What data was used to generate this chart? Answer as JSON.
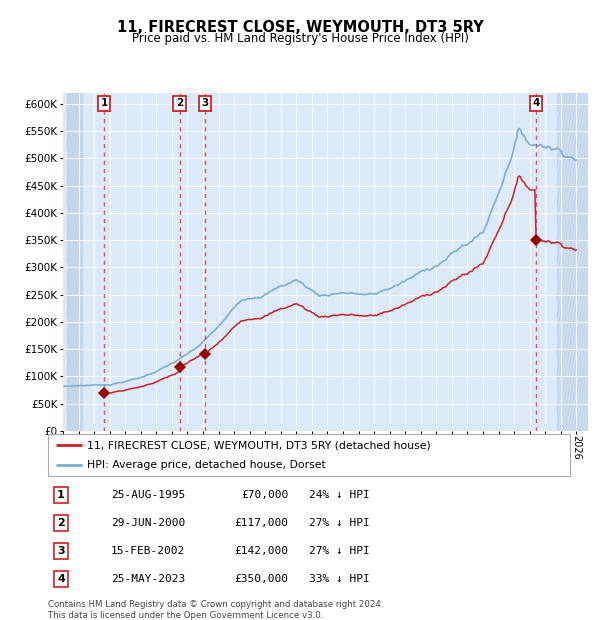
{
  "title": "11, FIRECREST CLOSE, WEYMOUTH, DT3 5RY",
  "subtitle": "Price paid vs. HM Land Registry's House Price Index (HPI)",
  "ylim": [
    0,
    620000
  ],
  "yticks": [
    0,
    50000,
    100000,
    150000,
    200000,
    250000,
    300000,
    350000,
    400000,
    450000,
    500000,
    550000,
    600000
  ],
  "ytick_labels": [
    "£0",
    "£50K",
    "£100K",
    "£150K",
    "£200K",
    "£250K",
    "£300K",
    "£350K",
    "£400K",
    "£450K",
    "£500K",
    "£550K",
    "£600K"
  ],
  "xlim_start": 1993.25,
  "xlim_end": 2026.75,
  "plot_bg_color": "#dce9f8",
  "hpi_line_color": "#7bafd4",
  "price_line_color": "#cc2222",
  "marker_color": "#990000",
  "dashed_line_color": "#dd4444",
  "sale_events": [
    {
      "num": 1,
      "year": 1995.648,
      "price": 70000,
      "label": "25-AUG-1995",
      "amount": "£70,000",
      "pct": "24% ↓ HPI"
    },
    {
      "num": 2,
      "year": 2000.494,
      "price": 117000,
      "label": "29-JUN-2000",
      "amount": "£117,000",
      "pct": "27% ↓ HPI"
    },
    {
      "num": 3,
      "year": 2002.121,
      "price": 142000,
      "label": "15-FEB-2002",
      "amount": "£142,000",
      "pct": "27% ↓ HPI"
    },
    {
      "num": 4,
      "year": 2023.397,
      "price": 350000,
      "label": "25-MAY-2023",
      "amount": "£350,000",
      "pct": "33% ↓ HPI"
    }
  ],
  "legend_line1": "11, FIRECREST CLOSE, WEYMOUTH, DT3 5RY (detached house)",
  "legend_line2": "HPI: Average price, detached house, Dorset",
  "footer": "Contains HM Land Registry data © Crown copyright and database right 2024.\nThis data is licensed under the Open Government Licence v3.0.",
  "grid_color": "#ffffff",
  "hatch_region_left_end": 1994.25,
  "hatch_region_right_start": 2024.75
}
